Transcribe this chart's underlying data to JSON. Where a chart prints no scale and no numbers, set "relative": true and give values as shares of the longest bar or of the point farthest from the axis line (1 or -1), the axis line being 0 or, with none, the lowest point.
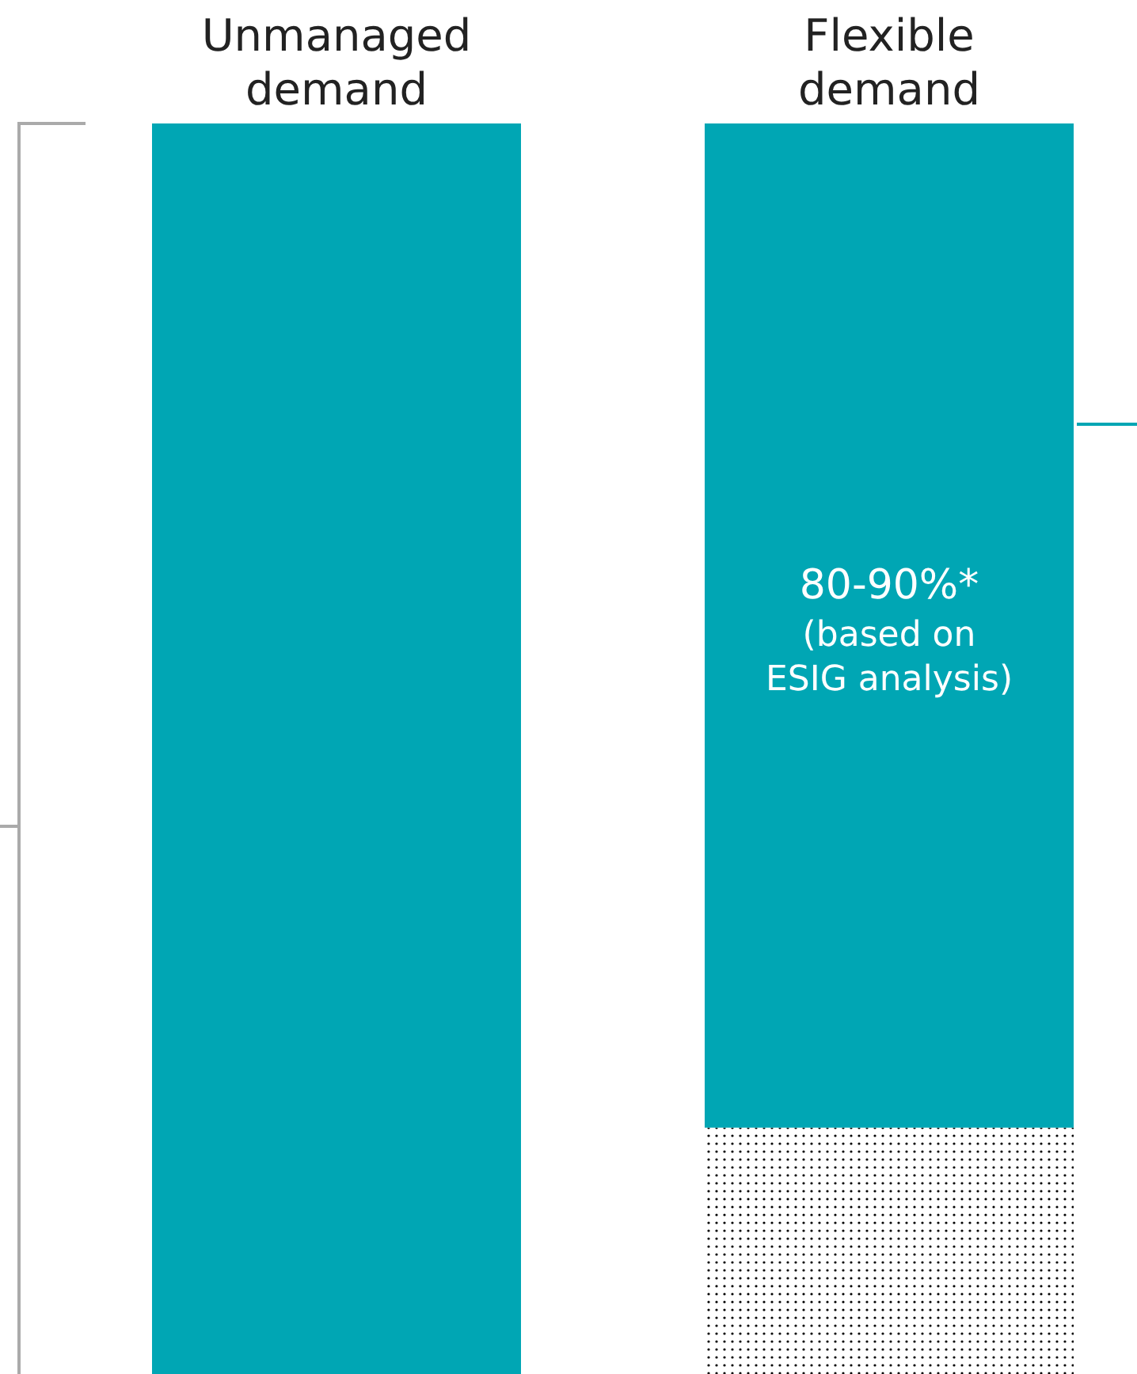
{
  "chart_data": {
    "type": "bar",
    "stacked": true,
    "relative": true,
    "categories": [
      "Unmanaged\ndemand",
      "Flexible\ndemand"
    ],
    "series": [
      {
        "color": "#000000",
        "values": [
          0,
          0.197
        ]
      },
      {
        "color": "#00a6b4",
        "values": [
          1,
          0.803
        ]
      }
    ],
    "annotations": [
      "80-90%*\n(based on\nESIG analysis)"
    ]
  }
}
